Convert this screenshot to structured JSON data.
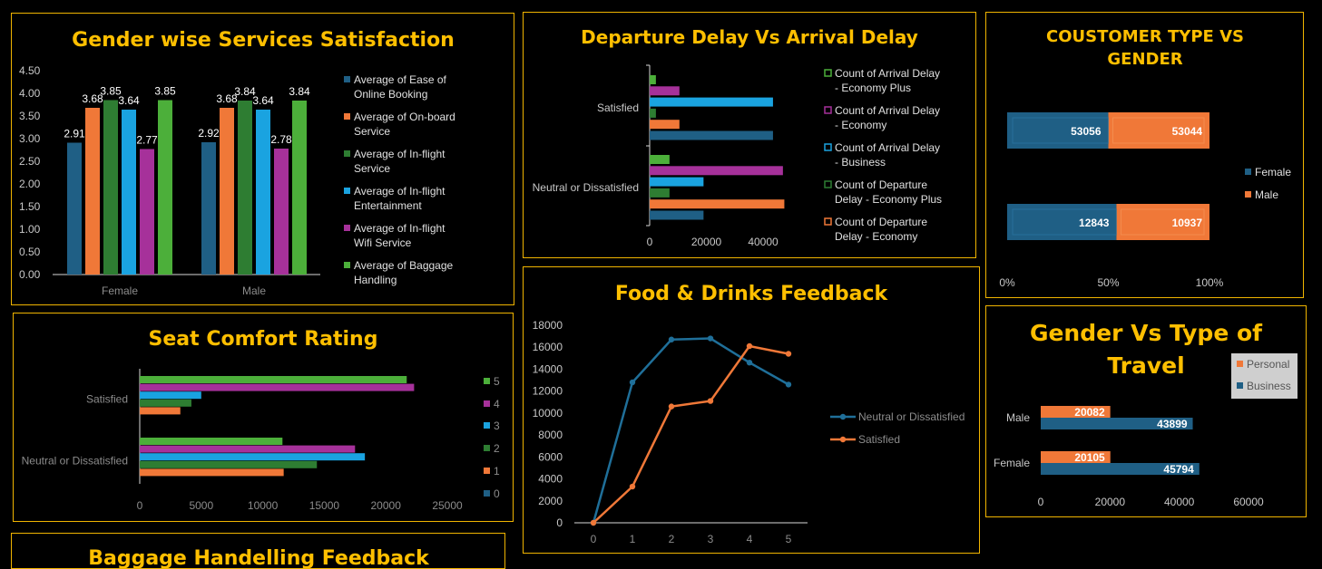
{
  "colors": {
    "background": "#000000",
    "panel_border": "#f0b400",
    "title": "#ffbf00",
    "navy": "#1f5f85",
    "orange": "#f07838",
    "dark_green": "#2e7d32",
    "sky_blue": "#1aa3e0",
    "purple": "#a6319a",
    "light_green": "#4caf3a"
  },
  "chart_data": [
    {
      "id": "gender_services",
      "type": "bar",
      "title": "Gender wise Services Satisfaction",
      "categories": [
        "Female",
        "Male"
      ],
      "yticks": [
        "0.00",
        "0.50",
        "1.00",
        "1.50",
        "2.00",
        "2.50",
        "3.00",
        "3.50",
        "4.00",
        "4.50"
      ],
      "ylim": [
        0,
        4.5
      ],
      "series": [
        {
          "name": "Average of Ease of Online Booking",
          "values": [
            2.91,
            2.92
          ],
          "labels": [
            "2.91",
            "2.92"
          ],
          "color": "#1f5f85"
        },
        {
          "name": "Average of On-board Service",
          "values": [
            3.68,
            3.68
          ],
          "labels": [
            "3.68",
            "3.68"
          ],
          "color": "#f07838"
        },
        {
          "name": "Average of In-flight Service",
          "values": [
            3.85,
            3.84
          ],
          "labels": [
            "3.85",
            "3.84"
          ],
          "color": "#2e7d32"
        },
        {
          "name": "Average of In-flight Entertainment",
          "values": [
            3.64,
            3.64
          ],
          "labels": [
            "3.64",
            "3.64"
          ],
          "color": "#1aa3e0"
        },
        {
          "name": "Average of In-flight Wifi Service",
          "values": [
            2.77,
            2.78
          ],
          "labels": [
            "2.77",
            "2.78"
          ],
          "color": "#a6319a"
        },
        {
          "name": "Average of Baggage Handling",
          "values": [
            3.85,
            3.84
          ],
          "labels": [
            "3.85",
            "3.84"
          ],
          "color": "#4caf3a"
        }
      ],
      "legend": "right"
    },
    {
      "id": "delay",
      "type": "bar",
      "orientation": "horizontal",
      "title": "Departure Delay Vs Arrival Delay",
      "categories": [
        "Satisfied",
        "Neutral or Dissatisfied"
      ],
      "xticks": [
        "0",
        "20000",
        "40000"
      ],
      "xlim": [
        0,
        48000
      ],
      "series": [
        {
          "name": "Count of Arrival Delay - Economy Plus",
          "values": [
            2200,
            7000
          ],
          "color": "#4caf3a"
        },
        {
          "name": "Count of Arrival Delay - Economy",
          "values": [
            10500,
            47000
          ],
          "color": "#a6319a"
        },
        {
          "name": "Count of Arrival Delay - Business",
          "values": [
            43500,
            19000
          ],
          "color": "#1aa3e0"
        },
        {
          "name": "Count of Departure Delay - Economy Plus",
          "values": [
            2200,
            7000
          ],
          "color": "#2e7d32"
        },
        {
          "name": "Count of Departure Delay - Economy",
          "values": [
            10500,
            47500
          ],
          "color": "#f07838"
        },
        {
          "name": "",
          "values": [
            43500,
            19000
          ],
          "color": "#1f5f85"
        }
      ],
      "legend": "right"
    },
    {
      "id": "customer_type",
      "type": "bar",
      "orientation": "horizontal",
      "stacked": "percent",
      "title_lines": [
        "COUSTOMER TYPE VS",
        "GENDER"
      ],
      "xticks": [
        "0%",
        "50%",
        "100%"
      ],
      "series": [
        {
          "name": "Female",
          "values": [
            53056,
            12843
          ],
          "labels": [
            "53056",
            "12843"
          ],
          "color": "#1f5f85"
        },
        {
          "name": "Male",
          "values": [
            53044,
            10937
          ],
          "labels": [
            "53044",
            "10937"
          ],
          "color": "#f07838"
        }
      ],
      "legend": "right"
    },
    {
      "id": "seat_comfort",
      "type": "bar",
      "orientation": "horizontal",
      "title": "Seat Comfort Rating",
      "categories": [
        "Satisfied",
        "Neutral or Dissatisfied"
      ],
      "xticks": [
        "0",
        "5000",
        "10000",
        "15000",
        "20000",
        "25000"
      ],
      "xlim": [
        0,
        25000
      ],
      "series": [
        {
          "name": "5",
          "values": [
            21700,
            11600
          ],
          "color": "#4caf3a"
        },
        {
          "name": "4",
          "values": [
            22300,
            17500
          ],
          "color": "#a6319a"
        },
        {
          "name": "3",
          "values": [
            5000,
            18300
          ],
          "color": "#1aa3e0"
        },
        {
          "name": "2",
          "values": [
            4200,
            14400
          ],
          "color": "#2e7d32"
        },
        {
          "name": "1",
          "values": [
            3300,
            11700
          ],
          "color": "#f07838"
        },
        {
          "name": "0",
          "values": [
            0,
            0
          ],
          "color": "#1f5f85"
        }
      ],
      "legend": "right"
    },
    {
      "id": "food_drinks",
      "type": "line",
      "title": "Food & Drinks Feedback",
      "x": [
        "0",
        "1",
        "2",
        "3",
        "4",
        "5"
      ],
      "yticks": [
        "0",
        "2000",
        "4000",
        "6000",
        "8000",
        "10000",
        "12000",
        "14000",
        "16000",
        "18000"
      ],
      "ylim": [
        0,
        18000
      ],
      "series": [
        {
          "name": "Neutral or Dissatisfied",
          "values": [
            0,
            12800,
            16700,
            16800,
            14600,
            12600
          ],
          "color": "#1f6f99"
        },
        {
          "name": "Satisfied",
          "values": [
            0,
            3300,
            10600,
            11100,
            16100,
            15400
          ],
          "color": "#f07838"
        }
      ],
      "legend": "right"
    },
    {
      "id": "gender_travel",
      "type": "bar",
      "orientation": "horizontal",
      "title_lines": [
        "Gender Vs Type of",
        "Travel"
      ],
      "categories": [
        "Male",
        "Female"
      ],
      "xticks": [
        "0",
        "20000",
        "40000",
        "60000"
      ],
      "xlim": [
        0,
        60000
      ],
      "series": [
        {
          "name": "Personal",
          "values": [
            20082,
            20105
          ],
          "labels": [
            "20082",
            "20105"
          ],
          "color": "#f07838"
        },
        {
          "name": "Business",
          "values": [
            43899,
            45794
          ],
          "labels": [
            "43899",
            "45794"
          ],
          "color": "#1f5f85"
        }
      ],
      "legend": "top-right"
    },
    {
      "id": "baggage",
      "type": "bar",
      "title": "Baggage Handelling Feedback"
    }
  ]
}
